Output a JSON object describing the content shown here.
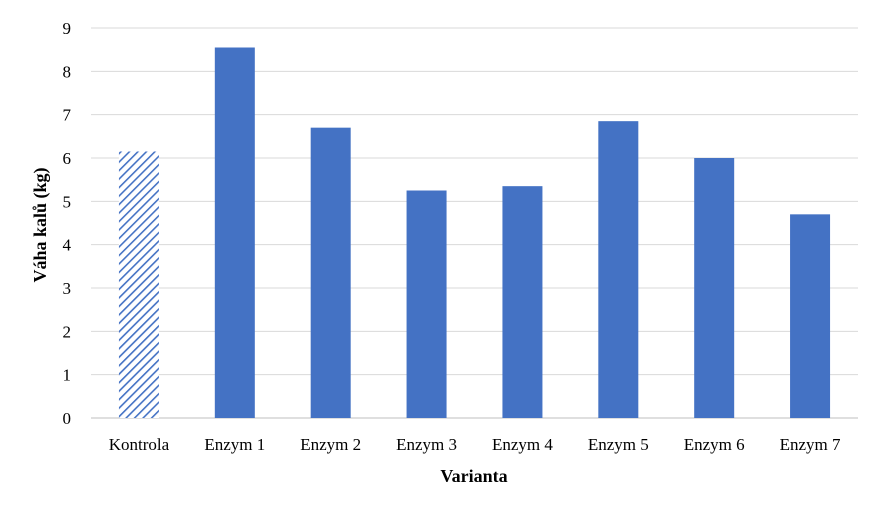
{
  "chart_data": {
    "type": "bar",
    "xlabel": "Varianta",
    "ylabel": "Váha kalů (kg)",
    "categories": [
      "Kontrola",
      "Enzym 1",
      "Enzym 2",
      "Enzym 3",
      "Enzym 4",
      "Enzym 5",
      "Enzym 6",
      "Enzym 7"
    ],
    "values": [
      6.15,
      8.55,
      6.7,
      5.25,
      5.35,
      6.85,
      6.0,
      4.7
    ],
    "ylim": [
      0,
      9
    ],
    "yticks": [
      "0",
      "1",
      "2",
      "3",
      "4",
      "5",
      "6",
      "7",
      "8",
      "9"
    ],
    "grid": true,
    "colors": {
      "bar": "#4472C4",
      "control_hatch": "#4472C4",
      "grid": "#d9d9d9",
      "axis": "#bfbfbf"
    },
    "bar_styles": [
      "hatched",
      "solid",
      "solid",
      "solid",
      "solid",
      "solid",
      "solid",
      "solid"
    ]
  }
}
